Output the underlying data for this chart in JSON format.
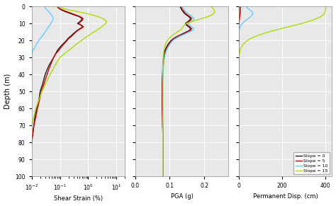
{
  "colors": [
    "#1a1a1a",
    "#cc0000",
    "#66ccff",
    "#aadd00"
  ],
  "labels": [
    "Slope = 0",
    "Slope = 5",
    "Slope = 10",
    "Slope = 15"
  ],
  "ylabel": "Depth (m)",
  "xlabel1": "Shear Strain (%)",
  "xlabel2": "PGA (g)",
  "xlabel3": "Permanent Disp. (cm)",
  "bg_color": "#e8e8e8",
  "figsize": [
    4.74,
    2.91
  ],
  "dpi": 100,
  "depth": [
    0,
    1,
    2,
    3,
    4,
    5,
    6,
    7,
    8,
    9,
    10,
    11,
    12,
    13,
    14,
    15,
    16,
    17,
    18,
    19,
    20,
    22,
    24,
    26,
    28,
    30,
    35,
    40,
    45,
    50,
    55,
    60,
    65,
    70,
    75,
    80,
    85,
    90,
    95,
    100
  ],
  "ss0": [
    0.08,
    0.09,
    0.11,
    0.15,
    0.22,
    0.32,
    0.48,
    0.6,
    0.58,
    0.5,
    0.42,
    0.55,
    0.65,
    0.52,
    0.42,
    0.35,
    0.3,
    0.26,
    0.22,
    0.19,
    0.17,
    0.13,
    0.1,
    0.08,
    0.07,
    0.06,
    0.04,
    0.03,
    0.025,
    0.02,
    0.018,
    0.015,
    0.013,
    0.012,
    0.011,
    0.01,
    0.009,
    0.008,
    0.007,
    0.006
  ],
  "ss5": [
    0.08,
    0.09,
    0.12,
    0.17,
    0.25,
    0.36,
    0.52,
    0.65,
    0.63,
    0.54,
    0.45,
    0.57,
    0.68,
    0.55,
    0.44,
    0.37,
    0.32,
    0.28,
    0.24,
    0.2,
    0.18,
    0.14,
    0.11,
    0.09,
    0.07,
    0.06,
    0.045,
    0.035,
    0.028,
    0.022,
    0.019,
    0.016,
    0.014,
    0.012,
    0.011,
    0.01,
    0.009,
    0.008,
    0.007,
    0.006
  ],
  "ss10": [
    0.03,
    0.03,
    0.035,
    0.04,
    0.045,
    0.05,
    0.055,
    0.058,
    0.056,
    0.052,
    0.048,
    0.044,
    0.04,
    0.036,
    0.033,
    0.03,
    0.027,
    0.025,
    0.022,
    0.02,
    0.018,
    0.015,
    0.013,
    0.011,
    0.01,
    0.009,
    0.007,
    0.006,
    0.005,
    0.004,
    0.004,
    0.003,
    0.003,
    0.003,
    0.003,
    0.003,
    0.003,
    0.003,
    0.002,
    0.002
  ],
  "ss15": [
    0.08,
    0.12,
    0.2,
    0.4,
    0.8,
    1.4,
    2.2,
    3.2,
    4.0,
    4.5,
    4.2,
    3.6,
    3.0,
    2.5,
    2.0,
    1.6,
    1.3,
    1.05,
    0.85,
    0.7,
    0.58,
    0.4,
    0.28,
    0.2,
    0.14,
    0.1,
    0.065,
    0.045,
    0.032,
    0.023,
    0.018,
    0.014,
    0.012,
    0.01,
    0.009,
    0.008,
    0.007,
    0.006,
    0.005,
    0.004
  ],
  "pga0": [
    0.13,
    0.132,
    0.135,
    0.138,
    0.142,
    0.148,
    0.155,
    0.16,
    0.158,
    0.152,
    0.145,
    0.148,
    0.155,
    0.16,
    0.158,
    0.148,
    0.138,
    0.128,
    0.118,
    0.11,
    0.104,
    0.096,
    0.09,
    0.086,
    0.084,
    0.082,
    0.08,
    0.079,
    0.078,
    0.078,
    0.078,
    0.078,
    0.079,
    0.079,
    0.08,
    0.08,
    0.08,
    0.08,
    0.08,
    0.08
  ],
  "pga5": [
    0.132,
    0.134,
    0.137,
    0.141,
    0.145,
    0.151,
    0.158,
    0.163,
    0.161,
    0.155,
    0.148,
    0.151,
    0.158,
    0.163,
    0.161,
    0.151,
    0.14,
    0.13,
    0.12,
    0.112,
    0.106,
    0.098,
    0.092,
    0.088,
    0.085,
    0.083,
    0.081,
    0.08,
    0.079,
    0.079,
    0.079,
    0.079,
    0.079,
    0.08,
    0.08,
    0.08,
    0.08,
    0.08,
    0.08,
    0.08
  ],
  "pga10": [
    0.136,
    0.138,
    0.142,
    0.146,
    0.151,
    0.158,
    0.165,
    0.17,
    0.168,
    0.162,
    0.154,
    0.157,
    0.164,
    0.169,
    0.167,
    0.157,
    0.146,
    0.135,
    0.125,
    0.116,
    0.109,
    0.101,
    0.095,
    0.09,
    0.087,
    0.085,
    0.082,
    0.081,
    0.08,
    0.08,
    0.08,
    0.08,
    0.08,
    0.08,
    0.08,
    0.08,
    0.08,
    0.08,
    0.08,
    0.08
  ],
  "pga15": [
    0.22,
    0.225,
    0.228,
    0.23,
    0.228,
    0.222,
    0.21,
    0.195,
    0.178,
    0.162,
    0.148,
    0.142,
    0.138,
    0.135,
    0.13,
    0.122,
    0.115,
    0.108,
    0.102,
    0.097,
    0.093,
    0.088,
    0.085,
    0.083,
    0.082,
    0.081,
    0.08,
    0.08,
    0.08,
    0.08,
    0.08,
    0.08,
    0.08,
    0.08,
    0.08,
    0.08,
    0.08,
    0.08,
    0.08,
    0.08
  ],
  "perm0": [
    2,
    2,
    2,
    2,
    1,
    1,
    1,
    0,
    0,
    0,
    0,
    0,
    0,
    0,
    0,
    0,
    0,
    0,
    0,
    0,
    0,
    0,
    0,
    0,
    0,
    0,
    0,
    0,
    0,
    0,
    0,
    0,
    0,
    0,
    0,
    0,
    0,
    0,
    0,
    0
  ],
  "perm5": [
    8,
    8,
    8,
    8,
    7,
    6,
    5,
    4,
    3,
    2,
    1,
    0,
    0,
    0,
    0,
    0,
    0,
    0,
    0,
    0,
    0,
    0,
    0,
    0,
    0,
    0,
    0,
    0,
    0,
    0,
    0,
    0,
    0,
    0,
    0,
    0,
    0,
    0,
    0,
    0
  ],
  "perm10": [
    35,
    40,
    50,
    60,
    65,
    62,
    55,
    45,
    35,
    25,
    17,
    11,
    7,
    4,
    2,
    1,
    0,
    0,
    0,
    0,
    0,
    0,
    0,
    0,
    0,
    0,
    0,
    0,
    0,
    0,
    0,
    0,
    0,
    0,
    0,
    0,
    0,
    0,
    0,
    0
  ],
  "perm15": [
    400,
    400,
    400,
    398,
    395,
    388,
    378,
    362,
    342,
    318,
    290,
    260,
    228,
    196,
    166,
    138,
    112,
    90,
    70,
    54,
    40,
    22,
    12,
    6,
    3,
    1,
    0,
    0,
    0,
    0,
    0,
    0,
    0,
    0,
    0,
    0,
    0,
    0,
    0,
    0
  ]
}
